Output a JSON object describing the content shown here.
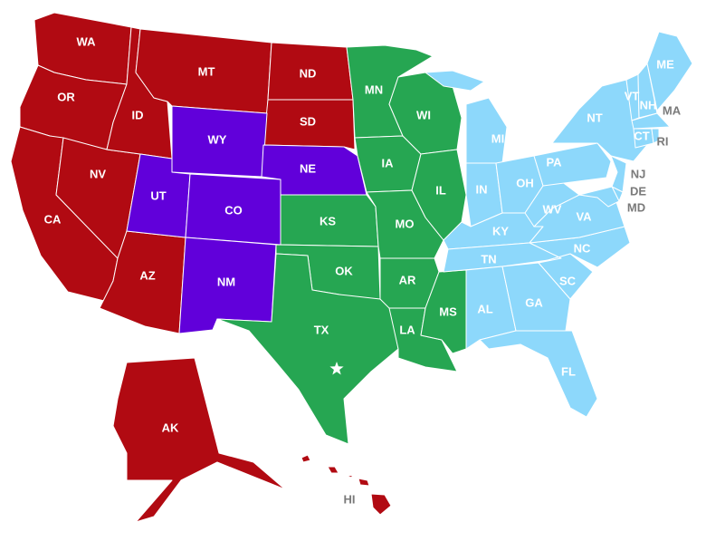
{
  "groups": {
    "red": "#b10a12",
    "purple": "#6100da",
    "green": "#26a652",
    "blue": "#8dd8fb"
  },
  "label_colors": {
    "inside": "#ffffff",
    "outside": "#7a7a7a"
  },
  "states": [
    {
      "id": "WA",
      "label": "WA",
      "group": "red"
    },
    {
      "id": "OR",
      "label": "OR",
      "group": "red"
    },
    {
      "id": "CA",
      "label": "CA",
      "group": "red"
    },
    {
      "id": "NV",
      "label": "NV",
      "group": "red"
    },
    {
      "id": "ID",
      "label": "ID",
      "group": "red"
    },
    {
      "id": "MT",
      "label": "MT",
      "group": "red"
    },
    {
      "id": "AZ",
      "label": "AZ",
      "group": "red"
    },
    {
      "id": "ND",
      "label": "ND",
      "group": "red"
    },
    {
      "id": "SD",
      "label": "SD",
      "group": "red"
    },
    {
      "id": "AK",
      "label": "AK",
      "group": "red"
    },
    {
      "id": "HI",
      "label": "HI",
      "group": "red"
    },
    {
      "id": "WY",
      "label": "WY",
      "group": "purple"
    },
    {
      "id": "UT",
      "label": "UT",
      "group": "purple"
    },
    {
      "id": "CO",
      "label": "CO",
      "group": "purple"
    },
    {
      "id": "NM",
      "label": "NM",
      "group": "purple"
    },
    {
      "id": "NE",
      "label": "NE",
      "group": "purple"
    },
    {
      "id": "KS",
      "label": "KS",
      "group": "green"
    },
    {
      "id": "OK",
      "label": "OK",
      "group": "green"
    },
    {
      "id": "TX",
      "label": "TX",
      "group": "green"
    },
    {
      "id": "MN",
      "label": "MN",
      "group": "green"
    },
    {
      "id": "IA",
      "label": "IA",
      "group": "green"
    },
    {
      "id": "MO",
      "label": "MO",
      "group": "green"
    },
    {
      "id": "AR",
      "label": "AR",
      "group": "green"
    },
    {
      "id": "LA",
      "label": "LA",
      "group": "green"
    },
    {
      "id": "WI",
      "label": "WI",
      "group": "green"
    },
    {
      "id": "IL",
      "label": "IL",
      "group": "green"
    },
    {
      "id": "MS",
      "label": "MS",
      "group": "green"
    },
    {
      "id": "MI",
      "label": "MI",
      "group": "blue"
    },
    {
      "id": "IN",
      "label": "IN",
      "group": "blue"
    },
    {
      "id": "OH",
      "label": "OH",
      "group": "blue"
    },
    {
      "id": "KY",
      "label": "KY",
      "group": "blue"
    },
    {
      "id": "TN",
      "label": "TN",
      "group": "blue"
    },
    {
      "id": "AL",
      "label": "AL",
      "group": "blue"
    },
    {
      "id": "GA",
      "label": "GA",
      "group": "blue"
    },
    {
      "id": "FL",
      "label": "FL",
      "group": "blue"
    },
    {
      "id": "SC",
      "label": "SC",
      "group": "blue"
    },
    {
      "id": "NC",
      "label": "NC",
      "group": "blue"
    },
    {
      "id": "VA",
      "label": "VA",
      "group": "blue"
    },
    {
      "id": "WV",
      "label": "WV",
      "group": "blue"
    },
    {
      "id": "PA",
      "label": "PA",
      "group": "blue"
    },
    {
      "id": "NY",
      "label": "NT",
      "group": "blue"
    },
    {
      "id": "VT",
      "label": "VT",
      "group": "blue"
    },
    {
      "id": "NH",
      "label": "NH",
      "group": "blue"
    },
    {
      "id": "ME",
      "label": "ME",
      "group": "blue"
    },
    {
      "id": "MA",
      "label": "MA",
      "group": "blue"
    },
    {
      "id": "CT",
      "label": "CT",
      "group": "blue"
    },
    {
      "id": "RI",
      "label": "RI",
      "group": "blue"
    },
    {
      "id": "NJ",
      "label": "NJ",
      "group": "blue"
    },
    {
      "id": "DE",
      "label": "DE",
      "group": "blue"
    },
    {
      "id": "MD",
      "label": "MD",
      "group": "blue"
    }
  ],
  "capital_marker": {
    "state": "TX",
    "icon": "star-icon"
  }
}
